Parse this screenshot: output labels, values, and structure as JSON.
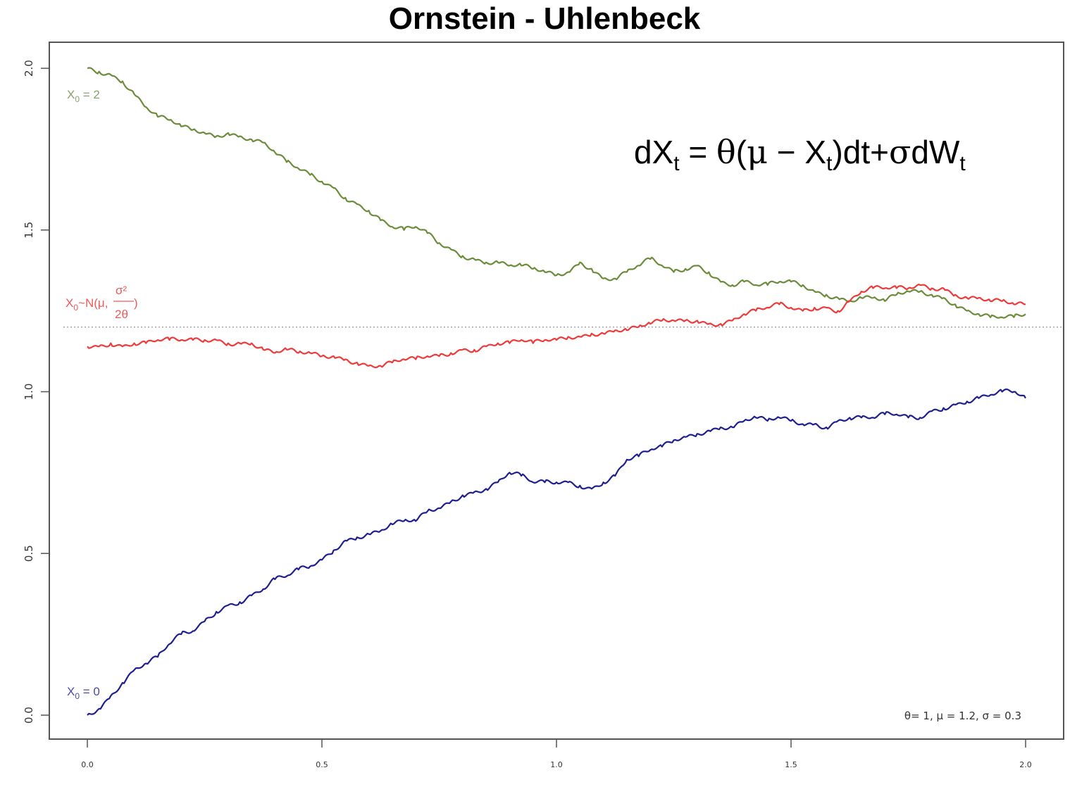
{
  "chart_data": {
    "type": "line",
    "title": "Ornstein - Uhlenbeck",
    "xlabel": "",
    "ylabel": "",
    "xlim": [
      0.0,
      2.0
    ],
    "ylim": [
      0.0,
      2.0
    ],
    "x_ticks": [
      "0.0",
      "0.5",
      "1.0",
      "1.5",
      "2.0"
    ],
    "y_ticks": [
      "0.0",
      "0.5",
      "1.0",
      "1.5",
      "2.0"
    ],
    "grid": false,
    "mean_line": {
      "value": 1.2,
      "style": "dotted",
      "color": "#999999"
    },
    "formula": {
      "lhs": "dX",
      "lhs_sub": "t",
      "eq": " = ",
      "theta": "θ",
      "paren_open": "(",
      "mu": "μ",
      "minus": " − X",
      "x_sub": "t",
      "paren_close": ")",
      "dt_plus": "dt+",
      "sigma": "σ",
      "dw": "dW",
      "dw_sub": "t"
    },
    "params_text": "θ= 1, μ = 1.2, σ = 0.3",
    "series": [
      {
        "name": "X0 = 2",
        "label_main": "X",
        "label_sub": "0",
        "label_rest": " = 2",
        "color": "#6b8c3a",
        "x": [
          0.0,
          0.025,
          0.05,
          0.075,
          0.1,
          0.125,
          0.15,
          0.175,
          0.2,
          0.225,
          0.25,
          0.275,
          0.3,
          0.325,
          0.35,
          0.375,
          0.4,
          0.425,
          0.45,
          0.475,
          0.5,
          0.525,
          0.55,
          0.575,
          0.6,
          0.625,
          0.65,
          0.675,
          0.7,
          0.725,
          0.75,
          0.775,
          0.8,
          0.825,
          0.85,
          0.875,
          0.9,
          0.925,
          0.95,
          0.975,
          1.0,
          1.025,
          1.05,
          1.075,
          1.1,
          1.125,
          1.15,
          1.175,
          1.2,
          1.225,
          1.25,
          1.275,
          1.3,
          1.325,
          1.35,
          1.375,
          1.4,
          1.425,
          1.45,
          1.475,
          1.5,
          1.525,
          1.55,
          1.575,
          1.6,
          1.625,
          1.65,
          1.675,
          1.7,
          1.725,
          1.75,
          1.775,
          1.8,
          1.825,
          1.85,
          1.875,
          1.9,
          1.925,
          1.95,
          1.975,
          2.0
        ],
        "y": [
          2.0,
          1.99,
          1.98,
          1.96,
          1.92,
          1.88,
          1.85,
          1.84,
          1.82,
          1.81,
          1.8,
          1.79,
          1.8,
          1.79,
          1.78,
          1.77,
          1.74,
          1.71,
          1.69,
          1.67,
          1.65,
          1.63,
          1.6,
          1.58,
          1.56,
          1.53,
          1.51,
          1.5,
          1.51,
          1.49,
          1.46,
          1.44,
          1.42,
          1.41,
          1.4,
          1.4,
          1.39,
          1.39,
          1.38,
          1.37,
          1.36,
          1.37,
          1.4,
          1.38,
          1.35,
          1.35,
          1.37,
          1.39,
          1.41,
          1.39,
          1.37,
          1.38,
          1.39,
          1.37,
          1.34,
          1.33,
          1.34,
          1.33,
          1.33,
          1.34,
          1.34,
          1.33,
          1.31,
          1.3,
          1.29,
          1.28,
          1.29,
          1.29,
          1.28,
          1.3,
          1.31,
          1.31,
          1.3,
          1.29,
          1.27,
          1.25,
          1.24,
          1.23,
          1.23,
          1.23,
          1.24
        ]
      },
      {
        "name": "X0 ~ N(μ, σ²/2θ)",
        "label_main": "X",
        "label_sub": "0",
        "label_rest": "~N(μ,",
        "label_frac_num": "σ²",
        "label_frac_den": "2θ",
        "label_close": ")",
        "color": "#ee3a3a",
        "x": [
          0.0,
          0.025,
          0.05,
          0.075,
          0.1,
          0.125,
          0.15,
          0.175,
          0.2,
          0.225,
          0.25,
          0.275,
          0.3,
          0.325,
          0.35,
          0.375,
          0.4,
          0.425,
          0.45,
          0.475,
          0.5,
          0.525,
          0.55,
          0.575,
          0.6,
          0.625,
          0.65,
          0.675,
          0.7,
          0.725,
          0.75,
          0.775,
          0.8,
          0.825,
          0.85,
          0.875,
          0.9,
          0.925,
          0.95,
          0.975,
          1.0,
          1.025,
          1.05,
          1.075,
          1.1,
          1.125,
          1.15,
          1.175,
          1.2,
          1.225,
          1.25,
          1.275,
          1.3,
          1.325,
          1.35,
          1.375,
          1.4,
          1.425,
          1.45,
          1.475,
          1.5,
          1.525,
          1.55,
          1.575,
          1.6,
          1.625,
          1.65,
          1.675,
          1.7,
          1.725,
          1.75,
          1.775,
          1.8,
          1.825,
          1.85,
          1.875,
          1.9,
          1.925,
          1.95,
          1.975,
          2.0
        ],
        "y": [
          1.14,
          1.14,
          1.15,
          1.14,
          1.15,
          1.15,
          1.16,
          1.16,
          1.16,
          1.16,
          1.16,
          1.16,
          1.15,
          1.15,
          1.15,
          1.13,
          1.12,
          1.13,
          1.12,
          1.12,
          1.11,
          1.11,
          1.1,
          1.09,
          1.08,
          1.08,
          1.09,
          1.1,
          1.1,
          1.11,
          1.11,
          1.12,
          1.13,
          1.13,
          1.14,
          1.15,
          1.15,
          1.16,
          1.15,
          1.16,
          1.16,
          1.17,
          1.17,
          1.18,
          1.18,
          1.19,
          1.19,
          1.2,
          1.21,
          1.22,
          1.22,
          1.22,
          1.22,
          1.21,
          1.21,
          1.22,
          1.24,
          1.25,
          1.26,
          1.27,
          1.26,
          1.25,
          1.26,
          1.26,
          1.25,
          1.28,
          1.31,
          1.32,
          1.32,
          1.32,
          1.32,
          1.33,
          1.32,
          1.32,
          1.3,
          1.29,
          1.29,
          1.28,
          1.28,
          1.27,
          1.27
        ]
      },
      {
        "name": "X0 = 0",
        "label_main": "X",
        "label_sub": "0",
        "label_rest": " = 0",
        "color": "#1f1f8f",
        "x": [
          0.0,
          0.025,
          0.05,
          0.075,
          0.1,
          0.125,
          0.15,
          0.175,
          0.2,
          0.225,
          0.25,
          0.275,
          0.3,
          0.325,
          0.35,
          0.375,
          0.4,
          0.425,
          0.45,
          0.475,
          0.5,
          0.525,
          0.55,
          0.575,
          0.6,
          0.625,
          0.65,
          0.675,
          0.7,
          0.725,
          0.75,
          0.775,
          0.8,
          0.825,
          0.85,
          0.875,
          0.9,
          0.925,
          0.95,
          0.975,
          1.0,
          1.025,
          1.05,
          1.075,
          1.1,
          1.125,
          1.15,
          1.175,
          1.2,
          1.225,
          1.25,
          1.275,
          1.3,
          1.325,
          1.35,
          1.375,
          1.4,
          1.425,
          1.45,
          1.475,
          1.5,
          1.525,
          1.55,
          1.575,
          1.6,
          1.625,
          1.65,
          1.675,
          1.7,
          1.725,
          1.75,
          1.775,
          1.8,
          1.825,
          1.85,
          1.875,
          1.9,
          1.925,
          1.95,
          1.975,
          2.0
        ],
        "y": [
          0.0,
          0.02,
          0.06,
          0.1,
          0.14,
          0.16,
          0.18,
          0.22,
          0.25,
          0.26,
          0.29,
          0.32,
          0.34,
          0.35,
          0.37,
          0.39,
          0.42,
          0.43,
          0.45,
          0.46,
          0.48,
          0.51,
          0.54,
          0.55,
          0.56,
          0.57,
          0.59,
          0.6,
          0.6,
          0.63,
          0.64,
          0.66,
          0.68,
          0.69,
          0.7,
          0.72,
          0.75,
          0.74,
          0.72,
          0.72,
          0.72,
          0.72,
          0.71,
          0.7,
          0.72,
          0.74,
          0.79,
          0.8,
          0.82,
          0.83,
          0.85,
          0.86,
          0.87,
          0.88,
          0.89,
          0.89,
          0.91,
          0.92,
          0.91,
          0.92,
          0.91,
          0.9,
          0.9,
          0.89,
          0.91,
          0.92,
          0.92,
          0.92,
          0.93,
          0.93,
          0.92,
          0.92,
          0.94,
          0.95,
          0.96,
          0.97,
          0.98,
          0.99,
          1.0,
          1.0,
          0.98
        ]
      }
    ]
  }
}
